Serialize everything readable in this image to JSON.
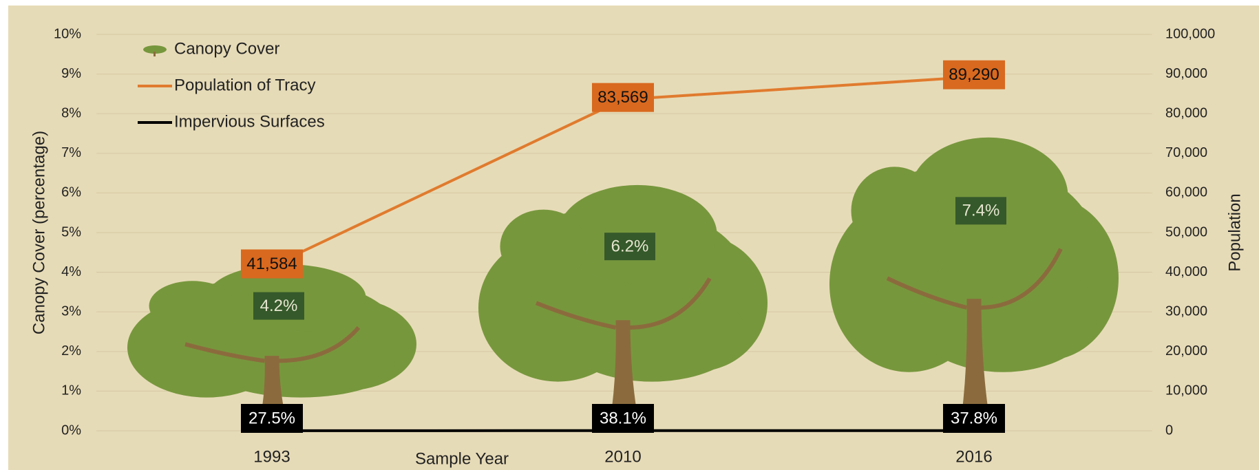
{
  "chart_data": {
    "type": "pictograph-combo",
    "x_label": "Sample Year",
    "y_label": "Canopy Cover (percentage)",
    "y2_label": "Population",
    "categories": [
      "1993",
      "2010",
      "2016"
    ],
    "series": [
      {
        "name": "Canopy Cover",
        "type": "tree",
        "color": "#77973d",
        "values": [
          4.2,
          6.2,
          7.4
        ],
        "value_labels": [
          "4.2%",
          "6.2%",
          "7.4%"
        ]
      },
      {
        "name": "Population of Tracy",
        "type": "line",
        "axis": "y2",
        "color": "#e07b2e",
        "values": [
          41584,
          83569,
          89290
        ],
        "value_labels": [
          "41,584",
          "83,569",
          "89,290"
        ]
      },
      {
        "name": "Impervious Surfaces",
        "type": "line",
        "axis": "y2",
        "color": "#000000",
        "values": [
          27.5,
          38.1,
          37.8
        ],
        "value_labels": [
          "27.5%",
          "38.1%",
          "37.8%"
        ]
      }
    ],
    "ylim": [
      0,
      10
    ],
    "yticks": [
      {
        "value": 0,
        "label": "0%"
      },
      {
        "value": 1,
        "label": "1%"
      },
      {
        "value": 2,
        "label": "2%"
      },
      {
        "value": 3,
        "label": "3%"
      },
      {
        "value": 4,
        "label": "4%"
      },
      {
        "value": 5,
        "label": "5%"
      },
      {
        "value": 6,
        "label": "6%"
      },
      {
        "value": 7,
        "label": "7%"
      },
      {
        "value": 8,
        "label": "8%"
      },
      {
        "value": 9,
        "label": "9%"
      },
      {
        "value": 10,
        "label": "10%"
      }
    ],
    "y2lim": [
      0,
      100000
    ],
    "y2ticks": [
      0,
      {
        "value": 10000,
        "label": "10,000"
      },
      {
        "value": 20000,
        "label": "20,000"
      },
      {
        "value": 30000,
        "label": "30,000"
      },
      {
        "value": 40000,
        "label": "40,000"
      },
      {
        "value": 50000,
        "label": "50,000"
      },
      {
        "value": 60000,
        "label": "60,000"
      },
      {
        "value": 70000,
        "label": "70,000"
      },
      {
        "value": 80000,
        "label": "80,000"
      },
      {
        "value": 90000,
        "label": "90,000"
      },
      {
        "value": 100000,
        "label": "100,000"
      }
    ],
    "grid": true,
    "legend": "top-left"
  }
}
